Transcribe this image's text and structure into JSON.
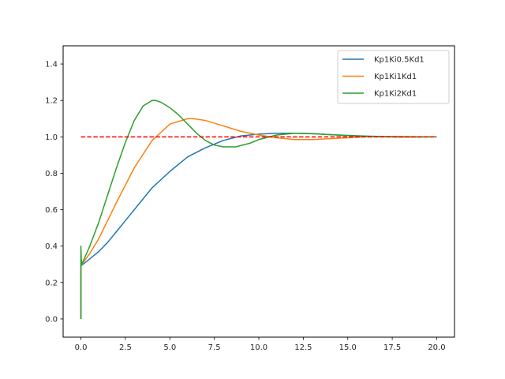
{
  "chart_data": {
    "type": "line",
    "title": "",
    "xlabel": "",
    "ylabel": "",
    "xlim": [
      -1.0,
      21.0
    ],
    "ylim": [
      -0.1,
      1.5
    ],
    "xticks": [
      0.0,
      2.5,
      5.0,
      7.5,
      10.0,
      12.5,
      15.0,
      17.5,
      20.0
    ],
    "xtick_labels": [
      "0.0",
      "2.5",
      "5.0",
      "7.5",
      "10.0",
      "12.5",
      "15.0",
      "17.5",
      "20.0"
    ],
    "yticks": [
      0.0,
      0.2,
      0.4,
      0.6,
      0.8,
      1.0,
      1.2,
      1.4
    ],
    "ytick_labels": [
      "0.0",
      "0.2",
      "0.4",
      "0.6",
      "0.8",
      "1.0",
      "1.2",
      "1.4"
    ],
    "grid": false,
    "legend_position": "top-right",
    "reference_line": {
      "x": [
        0.0,
        20.0
      ],
      "y": [
        1.0,
        1.0
      ],
      "color": "#ff0000",
      "style": "dashed"
    },
    "series": [
      {
        "name": "Kp1Ki0.5Kd1",
        "color": "#1f77b4",
        "x": [
          0.0,
          0.0,
          0.02,
          0.05,
          0.5,
          1.0,
          1.5,
          2.0,
          3.0,
          4.0,
          5.0,
          6.0,
          7.0,
          8.0,
          9.0,
          10.0,
          11.0,
          12.0,
          13.0,
          14.0,
          15.0,
          16.0,
          17.0,
          18.0,
          19.0,
          20.0
        ],
        "y": [
          0.0,
          0.29,
          0.3,
          0.295,
          0.33,
          0.37,
          0.42,
          0.48,
          0.6,
          0.72,
          0.81,
          0.89,
          0.94,
          0.98,
          1.005,
          1.015,
          1.02,
          1.02,
          1.017,
          1.012,
          1.008,
          1.004,
          1.002,
          1.0,
          1.0,
          1.0
        ]
      },
      {
        "name": "Kp1Ki1Kd1",
        "color": "#ff7f0e",
        "x": [
          0.0,
          0.0,
          0.02,
          0.05,
          0.5,
          1.0,
          1.5,
          2.0,
          3.0,
          4.0,
          5.0,
          6.0,
          6.3,
          7.0,
          8.0,
          9.0,
          10.0,
          11.0,
          12.0,
          13.0,
          14.0,
          15.0,
          16.0,
          17.0,
          18.0,
          19.0,
          20.0
        ],
        "y": [
          0.0,
          0.35,
          0.31,
          0.3,
          0.36,
          0.44,
          0.54,
          0.64,
          0.83,
          0.98,
          1.07,
          1.1,
          1.1,
          1.09,
          1.06,
          1.03,
          1.01,
          0.995,
          0.985,
          0.985,
          0.99,
          0.995,
          1.0,
          1.002,
          1.002,
          1.001,
          1.0
        ]
      },
      {
        "name": "Kp1Ki2Kd1",
        "color": "#2ca02c",
        "x": [
          0.0,
          0.0,
          0.02,
          0.05,
          0.5,
          1.0,
          1.5,
          2.0,
          2.5,
          3.0,
          3.5,
          4.0,
          4.2,
          4.5,
          5.0,
          5.5,
          6.0,
          6.5,
          7.0,
          7.5,
          8.0,
          8.7,
          9.5,
          10.0,
          11.0,
          12.0,
          13.0,
          14.0,
          15.0,
          16.0,
          17.0,
          18.0,
          19.0,
          20.0
        ],
        "y": [
          0.0,
          0.4,
          0.33,
          0.3,
          0.4,
          0.53,
          0.68,
          0.83,
          0.97,
          1.09,
          1.17,
          1.2,
          1.2,
          1.19,
          1.16,
          1.12,
          1.07,
          1.02,
          0.98,
          0.955,
          0.945,
          0.945,
          0.965,
          0.985,
          1.01,
          1.02,
          1.018,
          1.012,
          1.007,
          1.003,
          1.0,
          0.999,
          0.999,
          1.0
        ]
      }
    ]
  }
}
